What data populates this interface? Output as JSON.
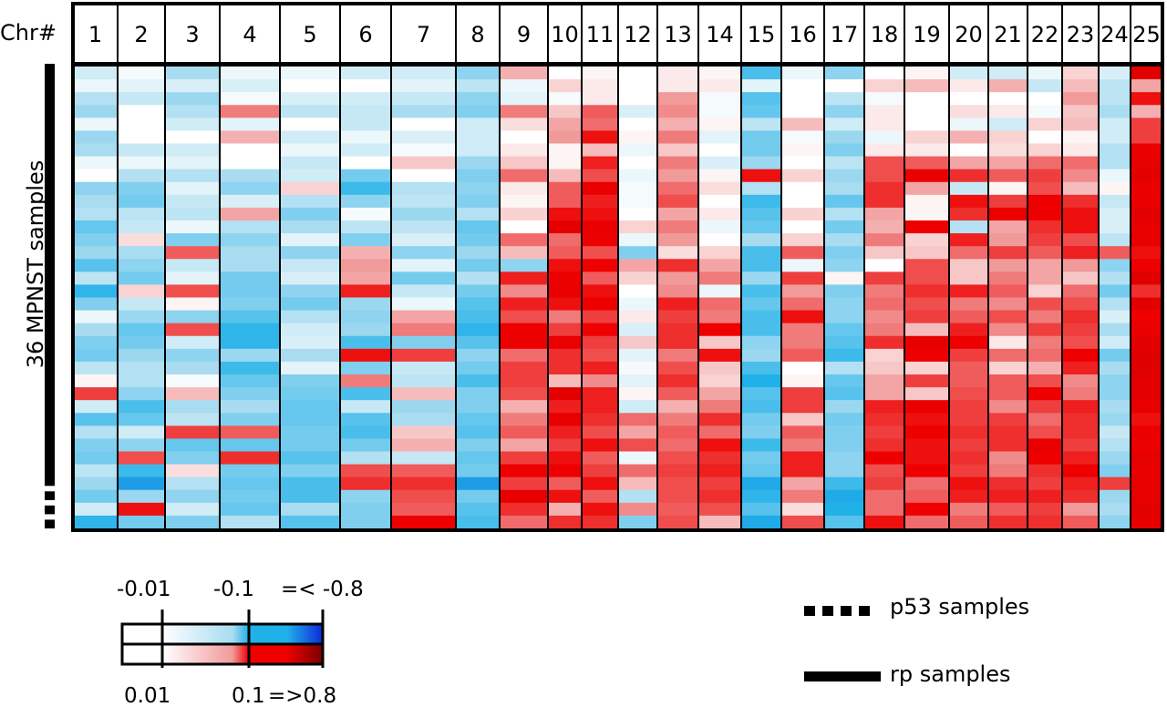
{
  "chart_data": {
    "type": "heatmap",
    "title": "",
    "header_label": "Chr#",
    "ylabel": "36 MPNST samples",
    "columns": [
      "1",
      "2",
      "3",
      "4",
      "5",
      "6",
      "7",
      "8",
      "9",
      "10",
      "11",
      "12",
      "13",
      "14",
      "15",
      "16",
      "17",
      "18",
      "19",
      "20",
      "21",
      "22",
      "23",
      "24",
      "25"
    ],
    "n_rows": 36,
    "colors": {
      "gain_low": "#ffffff",
      "gain_mid": "#f19a9a",
      "gain_high": "#ee0000",
      "gain_max": "#7a0000",
      "loss_low": "#ffffff",
      "loss_mid": "#a9dcf0",
      "loss_high": "#21b1e9",
      "loss_max": "#0b2ad8"
    },
    "legend": {
      "loss_labels": [
        "-0.01",
        "-0.1",
        "=< -0.8"
      ],
      "gain_labels": [
        "0.01",
        "0.1",
        "=>0.8"
      ],
      "sample_key": [
        {
          "symbol": "dashed",
          "label": "p53 samples"
        },
        {
          "symbol": "solid",
          "label": "rp samples"
        }
      ]
    },
    "sample_groups": [
      {
        "group": "rp",
        "start_row": 0,
        "end_row": 31
      },
      {
        "group": "p53",
        "start_row": 32,
        "end_row": 35
      }
    ],
    "cells": [
      [
        -0.06,
        -0.02,
        -0.1,
        -0.03,
        -0.03,
        -0.06,
        -0.06,
        -0.12,
        0.08,
        0.01,
        0.02,
        0.01,
        0.03,
        0.02,
        -0.17,
        -0.03,
        -0.12,
        0.01,
        0.02,
        -0.06,
        -0.06,
        -0.03,
        0.05,
        -0.05,
        0.27
      ],
      [
        -0.03,
        -0.04,
        -0.05,
        -0.05,
        -0.01,
        -0.01,
        -0.04,
        -0.08,
        -0.03,
        0.05,
        0.03,
        0.0,
        0.03,
        0.03,
        -0.04,
        -0.01,
        -0.01,
        0.05,
        0.07,
        0.03,
        0.08,
        -0.07,
        0.07,
        -0.08,
        0.09
      ],
      [
        -0.09,
        -0.07,
        -0.11,
        -0.02,
        -0.05,
        -0.06,
        -0.07,
        -0.12,
        -0.04,
        -0.02,
        0.03,
        0.01,
        0.1,
        -0.02,
        -0.16,
        0.0,
        -0.08,
        -0.02,
        0.01,
        0.01,
        -0.01,
        -0.01,
        0.1,
        -0.08,
        0.19
      ],
      [
        -0.11,
        0.0,
        -0.09,
        0.12,
        -0.08,
        -0.07,
        -0.1,
        -0.13,
        0.12,
        0.06,
        0.14,
        -0.05,
        0.11,
        -0.02,
        -0.15,
        -0.01,
        -0.12,
        0.03,
        0.01,
        0.04,
        0.03,
        -0.02,
        0.06,
        -0.1,
        0.08
      ],
      [
        -0.03,
        0.01,
        -0.06,
        -0.04,
        0.0,
        -0.07,
        -0.01,
        -0.06,
        0.04,
        0.09,
        0.13,
        0.0,
        0.08,
        0.02,
        -0.08,
        0.07,
        -0.06,
        0.03,
        0.0,
        -0.03,
        -0.06,
        0.05,
        0.07,
        -0.06,
        0.16
      ],
      [
        -0.11,
        0.0,
        -0.01,
        0.08,
        -0.06,
        -0.03,
        -0.05,
        -0.06,
        0.01,
        0.1,
        0.19,
        0.02,
        0.12,
        -0.04,
        -0.14,
        -0.02,
        -0.11,
        -0.03,
        0.05,
        0.08,
        0.05,
        0.0,
        0.02,
        -0.06,
        0.16
      ],
      [
        -0.1,
        -0.07,
        -0.06,
        -0.01,
        -0.03,
        -0.06,
        -0.02,
        -0.06,
        0.03,
        0.02,
        0.07,
        -0.03,
        0.06,
        -0.01,
        -0.14,
        0.02,
        -0.13,
        0.03,
        0.03,
        0.0,
        0.04,
        0.05,
        0.03,
        -0.09,
        0.22
      ],
      [
        -0.03,
        -0.03,
        -0.04,
        -0.01,
        -0.07,
        0.0,
        0.06,
        -0.11,
        0.06,
        0.02,
        0.18,
        -0.01,
        0.12,
        -0.05,
        -0.11,
        0.01,
        -0.08,
        0.15,
        0.14,
        0.09,
        0.09,
        0.13,
        0.13,
        -0.09,
        0.24
      ],
      [
        -0.01,
        -0.09,
        -0.09,
        -0.1,
        -0.06,
        -0.14,
        0.01,
        -0.13,
        0.13,
        0.07,
        0.15,
        -0.03,
        0.1,
        0.02,
        0.19,
        0.05,
        -0.11,
        0.15,
        0.22,
        0.17,
        0.14,
        0.16,
        0.11,
        -0.03,
        0.25
      ],
      [
        -0.12,
        -0.13,
        -0.04,
        -0.12,
        0.05,
        -0.18,
        -0.09,
        -0.12,
        0.03,
        0.14,
        0.22,
        -0.02,
        0.13,
        0.04,
        -0.09,
        0.01,
        -0.1,
        0.17,
        0.09,
        -0.07,
        0.02,
        0.15,
        0.07,
        0.02,
        0.22
      ],
      [
        -0.1,
        -0.14,
        -0.07,
        -0.05,
        -0.09,
        -0.12,
        -0.08,
        -0.13,
        0.02,
        0.14,
        0.18,
        -0.02,
        0.15,
        -0.01,
        -0.18,
        0.01,
        -0.15,
        0.17,
        0.02,
        0.19,
        0.16,
        0.2,
        0.17,
        -0.07,
        0.22
      ],
      [
        -0.09,
        -0.08,
        -0.08,
        0.09,
        -0.13,
        -0.02,
        -0.11,
        -0.09,
        0.05,
        0.19,
        0.19,
        0.0,
        0.09,
        0.03,
        -0.16,
        0.05,
        -0.09,
        0.09,
        0.02,
        0.17,
        0.2,
        0.2,
        0.19,
        -0.05,
        0.26
      ],
      [
        -0.15,
        -0.07,
        -0.03,
        -0.09,
        -0.1,
        -0.08,
        -0.08,
        -0.15,
        0.0,
        0.25,
        0.22,
        0.05,
        0.12,
        -0.03,
        -0.15,
        -0.01,
        -0.14,
        0.08,
        0.2,
        -0.09,
        0.09,
        0.17,
        0.19,
        -0.05,
        0.23
      ],
      [
        -0.13,
        0.04,
        -0.13,
        -0.12,
        -0.04,
        -0.13,
        -0.05,
        -0.14,
        0.13,
        0.13,
        0.21,
        -0.03,
        0.1,
        0.0,
        -0.1,
        0.05,
        -0.1,
        0.12,
        0.05,
        0.18,
        0.1,
        0.16,
        0.15,
        -0.08,
        0.23
      ],
      [
        -0.11,
        -0.1,
        0.14,
        -0.1,
        -0.12,
        0.08,
        -0.12,
        -0.11,
        0.07,
        0.14,
        0.15,
        -0.13,
        0.04,
        0.05,
        -0.17,
        0.14,
        -0.13,
        0.06,
        0.06,
        0.13,
        0.16,
        0.14,
        0.18,
        0.14,
        0.19
      ],
      [
        -0.16,
        -0.12,
        -0.07,
        -0.1,
        -0.07,
        0.1,
        -0.04,
        -0.14,
        -0.12,
        0.19,
        0.2,
        0.09,
        0.17,
        0.09,
        -0.17,
        -0.03,
        -0.12,
        0.01,
        0.15,
        0.06,
        0.1,
        0.09,
        0.1,
        -0.12,
        0.2
      ],
      [
        -0.08,
        -0.14,
        -0.04,
        -0.14,
        -0.05,
        0.09,
        -0.14,
        -0.09,
        0.18,
        0.21,
        0.14,
        0.05,
        0.1,
        0.12,
        -0.11,
        0.16,
        0.02,
        0.16,
        0.15,
        0.06,
        0.12,
        0.09,
        0.06,
        -0.09,
        0.27
      ],
      [
        -0.19,
        0.05,
        0.15,
        -0.14,
        -0.12,
        0.18,
        -0.07,
        -0.14,
        0.11,
        0.22,
        0.19,
        0.01,
        0.11,
        -0.03,
        -0.17,
        0.1,
        -0.13,
        0.12,
        0.17,
        0.18,
        0.14,
        0.05,
        0.13,
        -0.14,
        0.17
      ],
      [
        -0.13,
        -0.07,
        0.02,
        -0.13,
        -0.14,
        -0.11,
        -0.03,
        -0.16,
        0.18,
        0.19,
        0.2,
        -0.03,
        0.18,
        0.13,
        -0.15,
        0.13,
        -0.12,
        0.13,
        0.15,
        0.12,
        0.11,
        0.15,
        0.15,
        -0.09,
        0.26
      ],
      [
        -0.03,
        -0.11,
        -0.12,
        -0.16,
        -0.09,
        -0.12,
        0.09,
        -0.17,
        0.15,
        0.12,
        0.16,
        0.03,
        0.16,
        0.12,
        -0.17,
        0.19,
        -0.12,
        0.11,
        0.16,
        0.14,
        0.15,
        0.12,
        0.17,
        -0.05,
        0.2
      ],
      [
        -0.1,
        -0.15,
        0.15,
        -0.19,
        -0.06,
        -0.11,
        0.12,
        -0.19,
        0.2,
        0.16,
        0.2,
        -0.05,
        0.17,
        0.2,
        -0.17,
        0.12,
        -0.15,
        0.12,
        0.07,
        0.18,
        0.11,
        0.16,
        0.16,
        -0.1,
        0.22
      ],
      [
        -0.13,
        -0.14,
        -0.06,
        -0.19,
        -0.05,
        -0.17,
        -0.13,
        -0.16,
        0.21,
        0.22,
        0.16,
        0.06,
        0.17,
        0.06,
        -0.12,
        0.12,
        -0.16,
        0.17,
        0.24,
        0.2,
        0.03,
        0.12,
        0.15,
        -0.06,
        0.26
      ],
      [
        -0.14,
        -0.11,
        -0.12,
        -0.11,
        -0.1,
        0.19,
        0.16,
        -0.12,
        0.13,
        0.17,
        0.15,
        -0.04,
        0.12,
        0.19,
        -0.11,
        0.14,
        -0.18,
        0.05,
        0.2,
        0.16,
        0.13,
        0.13,
        0.2,
        -0.14,
        0.28
      ],
      [
        -0.08,
        -0.09,
        -0.1,
        -0.18,
        -0.04,
        -0.13,
        -0.07,
        -0.14,
        0.16,
        0.17,
        0.18,
        -0.02,
        0.15,
        0.06,
        -0.17,
        0.01,
        -0.09,
        0.06,
        0.05,
        0.14,
        0.05,
        0.08,
        0.18,
        -0.1,
        0.27
      ],
      [
        0.02,
        -0.09,
        -0.02,
        -0.15,
        -0.13,
        0.12,
        -0.08,
        -0.17,
        0.16,
        0.07,
        0.11,
        -0.04,
        0.17,
        0.05,
        -0.2,
        0.02,
        -0.15,
        0.09,
        0.16,
        0.14,
        0.14,
        0.15,
        0.11,
        -0.12,
        0.25
      ],
      [
        0.16,
        -0.12,
        0.07,
        -0.13,
        -0.14,
        -0.17,
        0.07,
        -0.13,
        0.15,
        0.25,
        0.18,
        0.02,
        0.14,
        0.09,
        -0.16,
        0.16,
        -0.16,
        0.09,
        0.06,
        0.15,
        0.14,
        0.2,
        0.12,
        -0.12,
        0.25
      ],
      [
        -0.06,
        -0.17,
        -0.1,
        -0.1,
        -0.15,
        -0.07,
        -0.11,
        -0.13,
        0.08,
        0.18,
        0.18,
        -0.06,
        0.08,
        0.12,
        -0.17,
        0.16,
        -0.11,
        0.18,
        0.22,
        0.16,
        0.11,
        0.16,
        0.18,
        -0.1,
        0.23
      ],
      [
        -0.16,
        -0.15,
        -0.08,
        -0.13,
        -0.15,
        -0.16,
        -0.1,
        -0.15,
        0.12,
        0.23,
        0.17,
        0.13,
        0.12,
        0.17,
        -0.14,
        0.06,
        -0.14,
        0.17,
        0.19,
        0.16,
        0.16,
        0.13,
        0.17,
        -0.11,
        0.19
      ],
      [
        -0.09,
        -0.06,
        0.16,
        0.14,
        -0.14,
        -0.17,
        0.06,
        -0.16,
        0.14,
        0.18,
        0.15,
        0.09,
        0.14,
        0.13,
        -0.13,
        0.14,
        -0.13,
        0.16,
        0.21,
        0.17,
        0.17,
        0.15,
        0.17,
        -0.07,
        0.22
      ],
      [
        -0.13,
        -0.12,
        -0.15,
        -0.15,
        -0.14,
        -0.14,
        0.08,
        -0.13,
        0.09,
        0.16,
        0.19,
        0.15,
        0.13,
        0.19,
        -0.18,
        0.12,
        -0.13,
        0.17,
        0.19,
        0.16,
        0.17,
        0.23,
        0.16,
        -0.09,
        0.21
      ],
      [
        -0.14,
        0.15,
        -0.13,
        0.17,
        -0.16,
        -0.09,
        -0.07,
        -0.15,
        0.16,
        0.19,
        0.14,
        -0.03,
        0.15,
        0.17,
        -0.14,
        0.18,
        -0.12,
        0.2,
        0.19,
        0.17,
        0.11,
        0.2,
        0.18,
        -0.11,
        0.24
      ],
      [
        -0.08,
        -0.18,
        0.04,
        -0.14,
        -0.13,
        0.15,
        0.14,
        -0.14,
        0.2,
        0.2,
        0.16,
        0.13,
        0.16,
        0.18,
        -0.15,
        0.18,
        -0.12,
        0.15,
        0.2,
        0.16,
        0.12,
        0.17,
        0.2,
        -0.13,
        0.23
      ],
      [
        -0.11,
        -0.29,
        -0.09,
        -0.15,
        -0.17,
        0.17,
        0.17,
        -0.29,
        0.16,
        0.14,
        0.19,
        0.07,
        0.15,
        0.16,
        -0.24,
        0.09,
        -0.18,
        0.16,
        0.13,
        0.19,
        0.17,
        0.16,
        0.18,
        0.16,
        0.24
      ],
      [
        -0.14,
        -0.11,
        -0.12,
        -0.14,
        -0.17,
        -0.12,
        0.15,
        -0.14,
        0.23,
        0.19,
        0.14,
        -0.09,
        0.15,
        0.17,
        -0.19,
        0.12,
        -0.23,
        0.13,
        0.14,
        0.18,
        0.18,
        0.18,
        0.17,
        -0.11,
        0.24
      ],
      [
        -0.06,
        0.19,
        -0.06,
        -0.15,
        -0.1,
        -0.13,
        0.14,
        -0.16,
        0.17,
        0.08,
        0.19,
        0.11,
        0.14,
        0.15,
        -0.16,
        0.04,
        -0.2,
        0.13,
        0.2,
        0.12,
        0.14,
        0.16,
        0.1,
        -0.1,
        0.26
      ],
      [
        -0.19,
        -0.14,
        -0.13,
        -0.09,
        -0.16,
        -0.13,
        0.2,
        -0.17,
        0.13,
        0.17,
        0.17,
        -0.13,
        0.15,
        0.07,
        -0.23,
        0.15,
        -0.16,
        0.19,
        0.13,
        0.14,
        0.17,
        0.17,
        0.14,
        -0.12,
        0.23
      ]
    ]
  }
}
